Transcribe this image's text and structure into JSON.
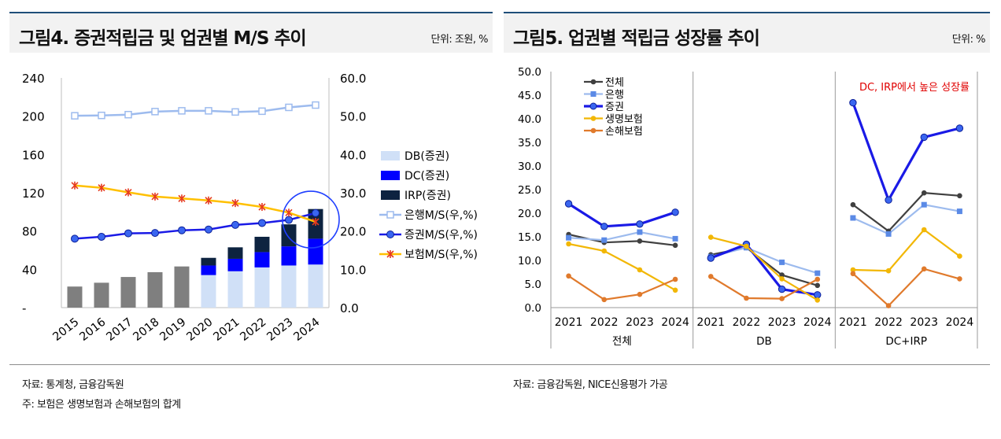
{
  "left_panel": {
    "title": "그림4. 증권적립금 및 업권별 M/S 추이",
    "unit": "단위: 조원, %",
    "source": "자료: 통계청, 금융감독원",
    "note": "주: 보험은 생명보험과 손해보험의 합계"
  },
  "right_panel": {
    "title": "그림5. 업권별 적립금 성장률 추이",
    "unit": "단위: %",
    "source": "자료: 금융감독원, NICE신용평가 가공",
    "annotation": "DC, IRP에서 높은 성장률"
  },
  "colors": {
    "db": "#d0e0f7",
    "dc": "#0000ff",
    "irp": "#0d2340",
    "total_gray": "#7f7f7f",
    "bank": "#9dbbee",
    "securities": "#1a1ae6",
    "insurance": "#ffc000",
    "total": "#404040",
    "life": "#f2b705",
    "nonlife": "#e07a2c",
    "red": "#e00000"
  },
  "chart_data": [
    {
      "type": "bar",
      "categories": [
        "2015",
        "2016",
        "2017",
        "2018",
        "2019",
        "2020",
        "2021",
        "2022",
        "2023",
        "2024"
      ],
      "series": [
        {
          "name": "DB(증권)",
          "values": [
            null,
            null,
            null,
            null,
            null,
            34,
            38,
            42,
            44,
            45
          ]
        },
        {
          "name": "DC(증권)",
          "values": [
            null,
            null,
            null,
            null,
            null,
            10,
            13,
            16,
            20,
            27
          ]
        },
        {
          "name": "IRP(증권)",
          "values": [
            null,
            null,
            null,
            null,
            null,
            8,
            12,
            16,
            23,
            31
          ]
        },
        {
          "name": "",
          "values": [
            22,
            26,
            32,
            37,
            43,
            null,
            null,
            null,
            null,
            null
          ]
        }
      ],
      "line_series": [
        {
          "name": "은행M/S(우,%)",
          "values": [
            50.1,
            50.2,
            50.4,
            51.2,
            51.4,
            51.4,
            51.1,
            51.3,
            52.3,
            52.9
          ]
        },
        {
          "name": "증권M/S(우,%)",
          "values": [
            18.0,
            18.5,
            19.4,
            19.5,
            20.2,
            20.4,
            21.6,
            22.1,
            22.9,
            24.7
          ]
        },
        {
          "name": "보험M/S(우,%)",
          "values": [
            31.9,
            31.3,
            30.1,
            29.0,
            28.5,
            28.0,
            27.3,
            26.3,
            24.8,
            22.4
          ]
        }
      ],
      "y_left_ticks": [
        "-",
        "40",
        "80",
        "120",
        "160",
        "200",
        "240"
      ],
      "y_left_range": [
        0,
        240
      ],
      "y_right_ticks": [
        "0.0",
        "10.0",
        "20.0",
        "30.0",
        "40.0",
        "50.0",
        "60.0"
      ],
      "y_right_range": [
        0,
        60
      ]
    },
    {
      "type": "line",
      "groups": [
        "전체",
        "DB",
        "DC+IRP"
      ],
      "years": [
        "2021",
        "2022",
        "2023",
        "2024"
      ],
      "series": [
        {
          "name": "전체",
          "values": [
            [
              15.5,
              13.8,
              14.1,
              13.2
            ],
            [
              11.2,
              12.7,
              6.9,
              4.7
            ],
            [
              21.8,
              16.2,
              24.3,
              23.7
            ]
          ]
        },
        {
          "name": "은행",
          "values": [
            [
              14.8,
              14.3,
              16.0,
              14.6
            ],
            [
              10.8,
              12.7,
              9.6,
              7.3
            ],
            [
              19.0,
              15.6,
              21.8,
              20.4
            ]
          ]
        },
        {
          "name": "증권",
          "values": [
            [
              22.0,
              17.2,
              17.7,
              20.2
            ],
            [
              10.5,
              13.4,
              3.9,
              2.7
            ],
            [
              43.4,
              22.8,
              36.1,
              38.0
            ]
          ]
        },
        {
          "name": "생명보험",
          "values": [
            [
              13.5,
              12.0,
              8.0,
              3.7
            ],
            [
              14.9,
              13.0,
              6.1,
              1.6
            ],
            [
              8.0,
              7.8,
              16.5,
              10.9
            ]
          ]
        },
        {
          "name": "손해보험",
          "values": [
            [
              6.7,
              1.7,
              2.8,
              6.0
            ],
            [
              6.6,
              2.0,
              1.9,
              6.0
            ],
            [
              7.2,
              0.4,
              8.2,
              6.1
            ]
          ]
        }
      ],
      "y_ticks": [
        "0.0",
        "5.0",
        "10.0",
        "15.0",
        "20.0",
        "25.0",
        "30.0",
        "35.0",
        "40.0",
        "45.0",
        "50.0"
      ],
      "y_range": [
        0,
        50
      ]
    }
  ]
}
